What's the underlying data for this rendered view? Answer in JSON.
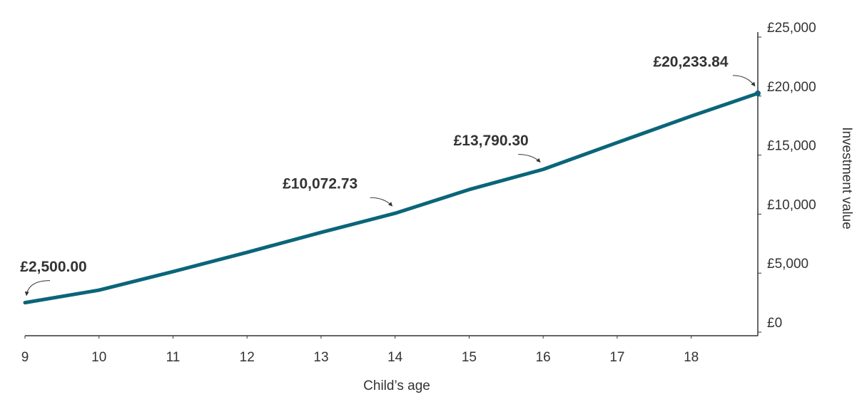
{
  "chart_data": {
    "type": "line",
    "x_label": "Child’s age",
    "y_label": "Investment value",
    "x": [
      9,
      10,
      11,
      12,
      13,
      14,
      15,
      16,
      17,
      18,
      18.9
    ],
    "xlim": [
      9,
      18.9
    ],
    "xticks": [
      9,
      10,
      11,
      12,
      13,
      14,
      15,
      16,
      17,
      18
    ],
    "ylim": [
      0,
      25000
    ],
    "yticks": [
      {
        "value": 0,
        "label": "£0"
      },
      {
        "value": 5000,
        "label": "£5,000"
      },
      {
        "value": 10000,
        "label": "£10,000"
      },
      {
        "value": 15000,
        "label": "£15,000"
      },
      {
        "value": 20000,
        "label": "£20,000"
      },
      {
        "value": 25000,
        "label": "£25,000"
      }
    ],
    "y_axis_side": "right",
    "grid": false,
    "series": [
      {
        "name": "Investment value",
        "color": "#0b6579",
        "values": [
          2500,
          3560,
          5130,
          6760,
          8450,
          10072.73,
          12080,
          13790.3,
          16060,
          18300,
          20233.84
        ],
        "value_labels": [
          "£2,500.00",
          null,
          null,
          null,
          null,
          "£10,072.73",
          null,
          "£13,790.30",
          null,
          null,
          "£20,233.84"
        ]
      }
    ]
  }
}
